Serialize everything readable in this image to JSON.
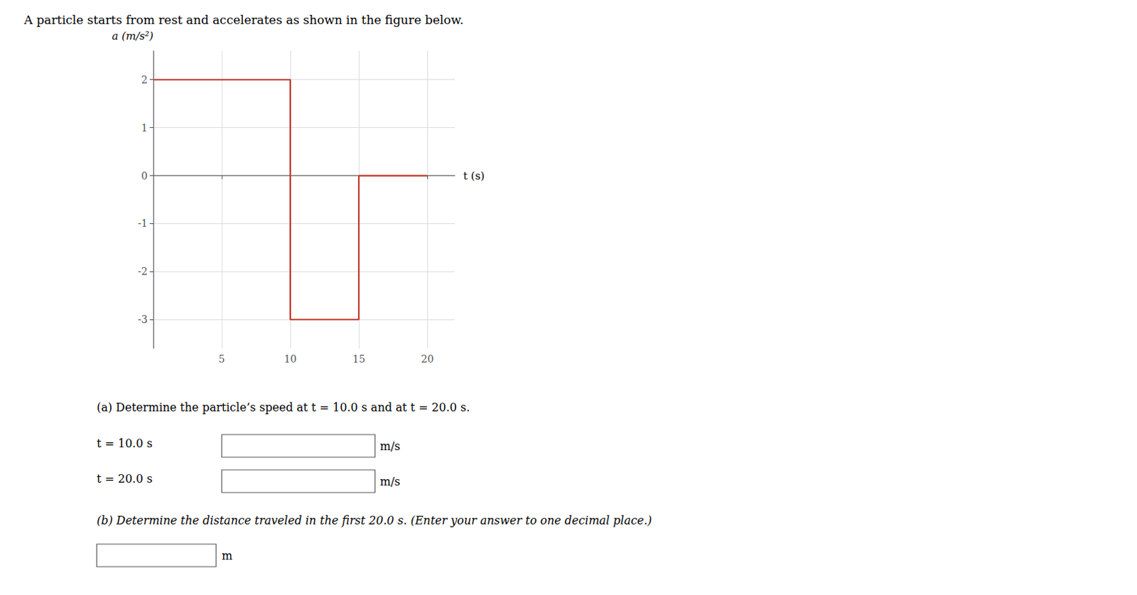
{
  "chart_data": {
    "type": "line",
    "title": "A particle starts from rest and accelerates as shown in the figure below.",
    "x_label": "t (s)",
    "y_label": "a (m/s²)",
    "x": [
      0,
      10,
      10,
      15,
      15,
      20
    ],
    "values": [
      2,
      2,
      -3,
      -3,
      0,
      0
    ],
    "color": "#c0392b",
    "xlim": [
      0,
      22
    ],
    "ylim": [
      -3.6,
      2.6
    ],
    "xticks": [
      5,
      10,
      15,
      20
    ],
    "yticks": [
      -3,
      -2,
      -1,
      0,
      1,
      2
    ],
    "grid": true,
    "annotations": [
      "(a) Determine the particle’s speed at t = 10.0 s and at t = 20.0 s.",
      "t = 10.0 s",
      "m/s",
      "t = 20.0 s",
      "m/s",
      "(b) Determine the distance traveled in the first 20.0 s. (Enter your answer to one decimal place.)",
      "m"
    ]
  }
}
